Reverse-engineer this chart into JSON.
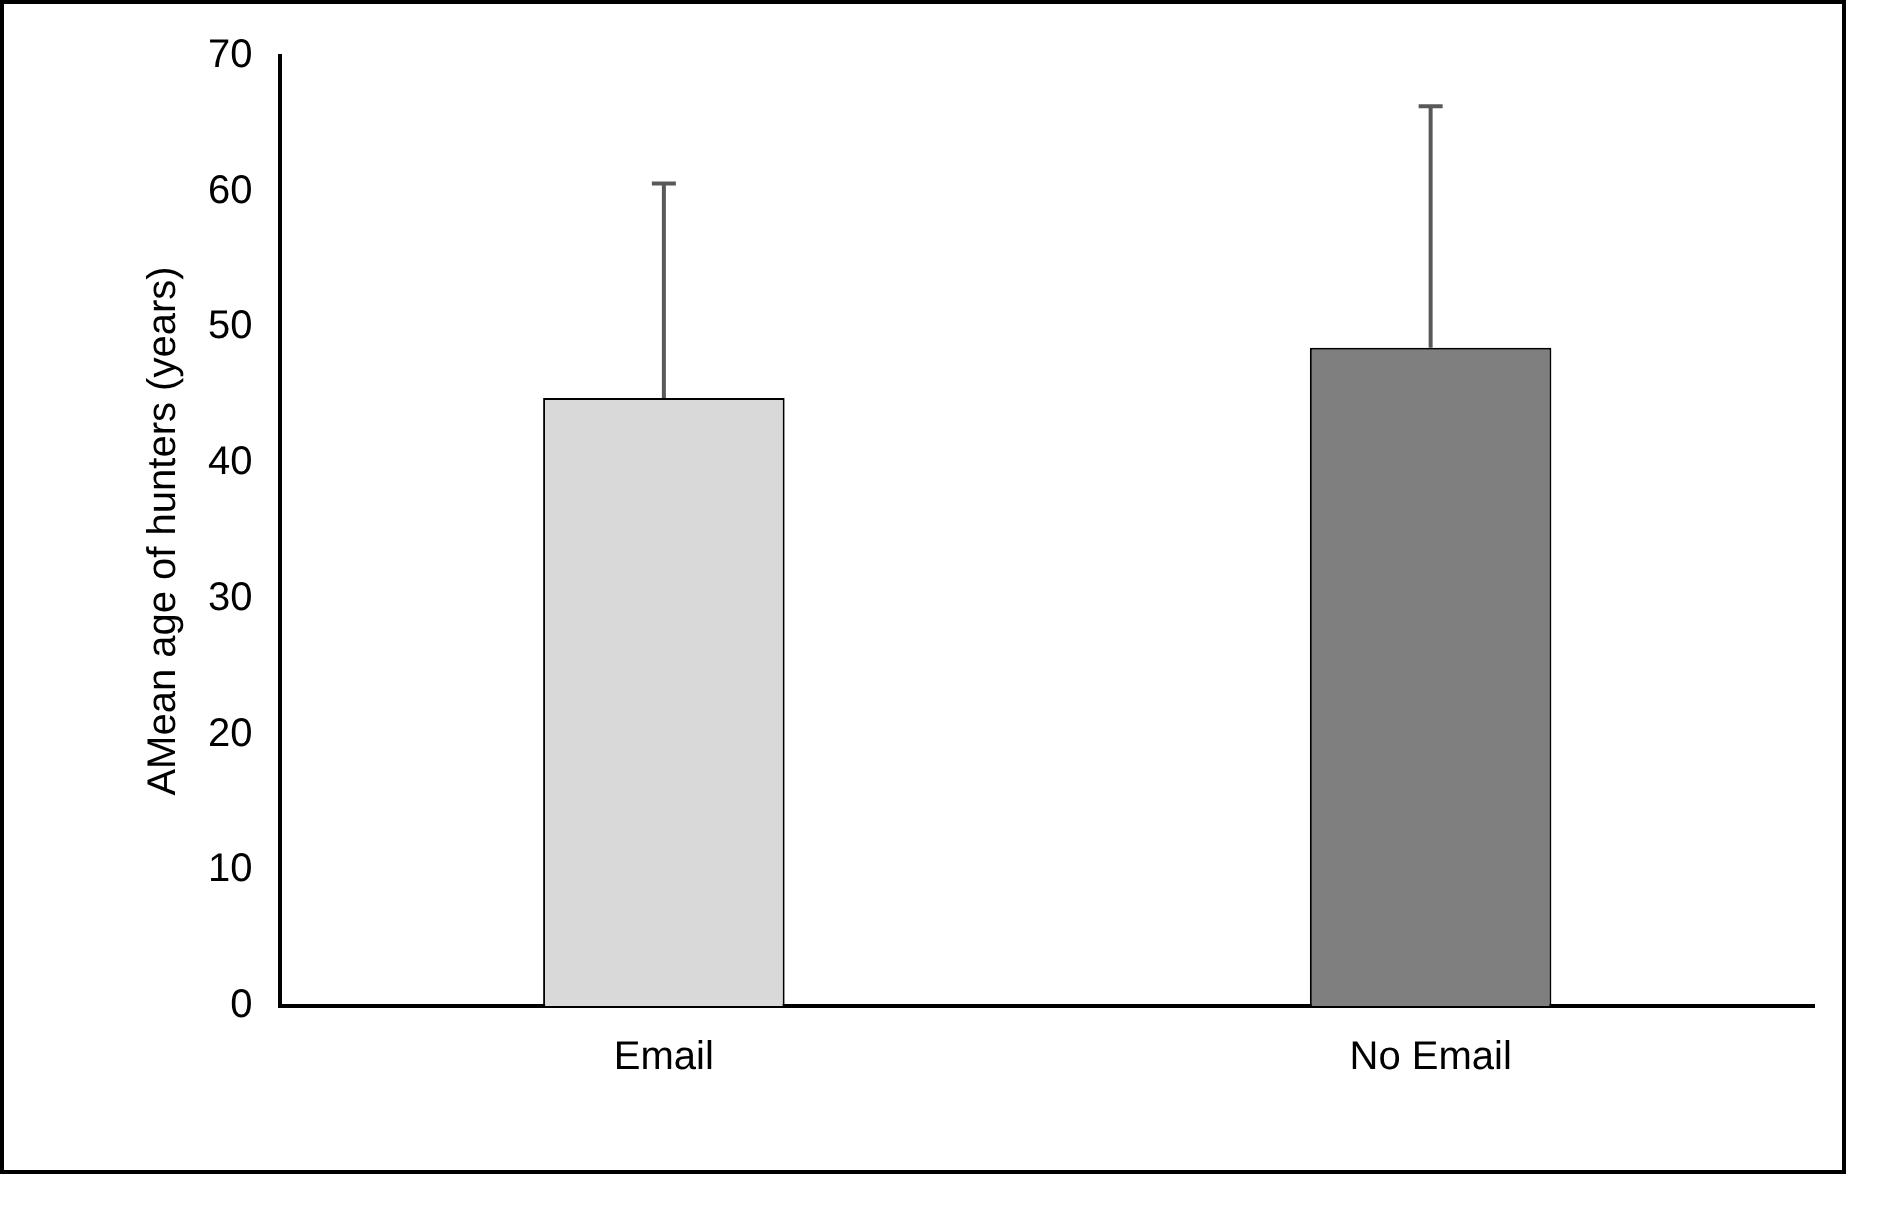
{
  "chart_data": {
    "type": "bar",
    "ylabel": "AMean age of hunters (years)",
    "categories": [
      "Email",
      "No Email"
    ],
    "values": [
      44.8,
      48.5
    ],
    "colors": [
      "#d9d9d9",
      "#7f7f7f"
    ],
    "errors": [
      [
        44.8,
        60.6
      ],
      [
        48.5,
        66.3
      ]
    ],
    "ylim": [
      0,
      70
    ],
    "yticks": [
      0,
      10,
      20,
      30,
      40,
      50,
      60,
      70
    ],
    "grid": false,
    "legend": false
  }
}
